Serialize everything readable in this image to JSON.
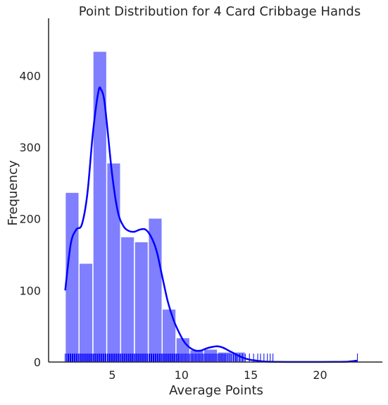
{
  "chart_data": {
    "type": "bar",
    "title": "Point Distribution for 4 Card Cribbage Hands",
    "xlabel": "Average Points",
    "ylabel": "Frequency",
    "xlim": [
      0.4,
      24.5
    ],
    "ylim": [
      0,
      480
    ],
    "xticks": [
      5,
      10,
      15,
      20
    ],
    "yticks": [
      0,
      100,
      200,
      300,
      400
    ],
    "bar_color": "#0000ff",
    "bar_opacity": 0.5,
    "kde_color": "#0000ff",
    "rug_color": "#0000ff",
    "bins": [
      {
        "x0": 1.6,
        "x1": 2.6,
        "count": 237
      },
      {
        "x0": 2.6,
        "x1": 3.6,
        "count": 138
      },
      {
        "x0": 3.6,
        "x1": 4.6,
        "count": 434
      },
      {
        "x0": 4.6,
        "x1": 5.6,
        "count": 278
      },
      {
        "x0": 5.6,
        "x1": 6.6,
        "count": 175
      },
      {
        "x0": 6.6,
        "x1": 7.6,
        "count": 168
      },
      {
        "x0": 7.6,
        "x1": 8.6,
        "count": 201
      },
      {
        "x0": 8.6,
        "x1": 9.6,
        "count": 74
      },
      {
        "x0": 9.6,
        "x1": 10.6,
        "count": 34
      },
      {
        "x0": 10.6,
        "x1": 11.6,
        "count": 17
      },
      {
        "x0": 11.6,
        "x1": 12.6,
        "count": 18
      },
      {
        "x0": 12.6,
        "x1": 13.6,
        "count": 14
      },
      {
        "x0": 13.6,
        "x1": 14.6,
        "count": 14
      }
    ],
    "kde": {
      "x": [
        1.6,
        2.0,
        2.4,
        2.8,
        3.2,
        3.6,
        4.0,
        4.2,
        4.4,
        4.6,
        5.0,
        5.4,
        5.8,
        6.2,
        6.6,
        7.0,
        7.4,
        7.8,
        8.2,
        8.6,
        9.0,
        9.4,
        9.8,
        10.2,
        10.6,
        11.0,
        11.4,
        11.8,
        12.2,
        12.6,
        13.0,
        13.4,
        13.8,
        14.2,
        14.6,
        15.0,
        15.4,
        15.8,
        16.2,
        16.6,
        17.0,
        18.0,
        19.0,
        20.0,
        21.0,
        22.0,
        22.7
      ],
      "y": [
        100,
        165,
        185,
        192,
        235,
        320,
        378,
        380,
        368,
        335,
        260,
        210,
        190,
        183,
        182,
        185,
        185,
        175,
        155,
        120,
        85,
        60,
        42,
        28,
        20,
        16,
        16,
        19,
        21,
        22,
        20,
        16,
        12,
        8,
        5,
        3,
        2,
        1,
        0.5,
        0.3,
        0.2,
        0.1,
        0.1,
        0.1,
        0.2,
        0.5,
        2
      ]
    },
    "rug": [
      1.6,
      1.7,
      1.8,
      1.85,
      1.95,
      2.0,
      2.1,
      2.15,
      2.25,
      2.3,
      2.4,
      2.45,
      2.55,
      2.6,
      2.7,
      2.75,
      2.85,
      2.9,
      3.0,
      3.05,
      3.15,
      3.2,
      3.3,
      3.35,
      3.45,
      3.5,
      3.6,
      3.65,
      3.75,
      3.8,
      3.9,
      3.95,
      4.05,
      4.1,
      4.2,
      4.25,
      4.35,
      4.4,
      4.5,
      4.55,
      4.65,
      4.7,
      4.8,
      4.85,
      4.95,
      5.0,
      5.1,
      5.15,
      5.25,
      5.3,
      5.4,
      5.45,
      5.55,
      5.6,
      5.7,
      5.75,
      5.85,
      5.9,
      6.0,
      6.05,
      6.15,
      6.2,
      6.3,
      6.35,
      6.45,
      6.5,
      6.6,
      6.65,
      6.75,
      6.8,
      6.9,
      6.95,
      7.05,
      7.1,
      7.2,
      7.25,
      7.35,
      7.4,
      7.5,
      7.55,
      7.65,
      7.7,
      7.8,
      7.85,
      7.95,
      8.0,
      8.1,
      8.15,
      8.25,
      8.3,
      8.4,
      8.45,
      8.55,
      8.6,
      8.7,
      8.75,
      8.85,
      8.9,
      9.0,
      9.05,
      9.15,
      9.2,
      9.3,
      9.35,
      9.45,
      9.5,
      9.6,
      9.65,
      9.75,
      9.8,
      9.9,
      10.0,
      10.1,
      10.2,
      10.3,
      10.4,
      10.5,
      10.6,
      10.7,
      10.8,
      10.9,
      11.0,
      11.1,
      11.2,
      11.3,
      11.4,
      11.5,
      11.6,
      11.7,
      11.8,
      11.9,
      12.0,
      12.1,
      12.2,
      12.3,
      12.4,
      12.5,
      12.6,
      12.7,
      12.8,
      12.9,
      13.0,
      13.1,
      13.2,
      13.35,
      13.5,
      13.6,
      13.75,
      13.9,
      14.0,
      14.2,
      14.4,
      14.6,
      14.9,
      15.2,
      15.5,
      15.7,
      15.95,
      16.2,
      16.4,
      16.6,
      22.7
    ]
  }
}
